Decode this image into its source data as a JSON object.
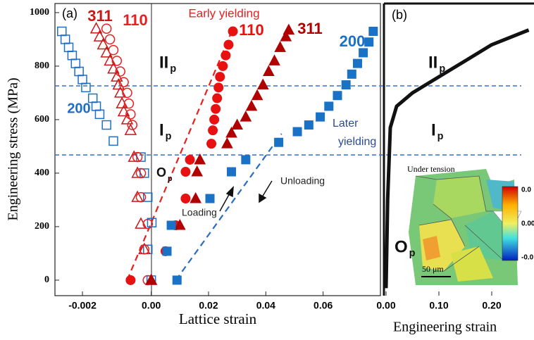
{
  "chart_data": [
    {
      "type": "scatter",
      "panel_label": "(a)",
      "xlabel": "Lattice strain",
      "ylabel": "Engineering stress (MPa)",
      "xlim": [
        -0.0028,
        0.08
      ],
      "x_negative_scale": 12,
      "xticks": [
        {
          "value": -0.002,
          "label": "-0.002"
        },
        {
          "value": 0,
          "label": "0.00"
        },
        {
          "value": 0.02,
          "label": "0.02"
        },
        {
          "value": 0.04,
          "label": "0.04"
        },
        {
          "value": 0.06,
          "label": "0.06"
        }
      ],
      "ylim": [
        -58,
        1034
      ],
      "yticks": [
        0,
        200,
        400,
        600,
        800,
        1000
      ],
      "series": [
        {
          "name": "200",
          "color": "#1f6fc8",
          "marker": "square",
          "filled": false,
          "x": [
            -0.0026,
            -0.0025,
            -0.0024,
            -0.0023,
            -0.0022,
            -0.0021,
            -0.002,
            -0.0019,
            -0.0017,
            -0.0016,
            -0.0015,
            -0.0013,
            -0.0011,
            -0.0003,
            -0.0002,
            -0.0001,
            0.0002,
            -0.0001,
            0
          ],
          "values": [
            930,
            900,
            870,
            840,
            810,
            780,
            750,
            720,
            680,
            650,
            620,
            580,
            520,
            460,
            400,
            310,
            215,
            115,
            0
          ]
        },
        {
          "name": "311",
          "color": "#c81818",
          "marker": "triangle",
          "filled": false,
          "x": [
            -0.0016,
            -0.0015,
            -0.0014,
            -0.0013,
            -0.0012,
            -0.0011,
            -0.001,
            -0.00095,
            -0.0009,
            -0.00085,
            -0.0008,
            -0.0007,
            -0.0006,
            -0.0005,
            -0.0004,
            -0.0004,
            -0.0003,
            -0.0002,
            0
          ],
          "values": [
            940,
            910,
            880,
            850,
            820,
            790,
            760,
            730,
            700,
            660,
            630,
            600,
            560,
            460,
            400,
            310,
            210,
            115,
            0
          ]
        },
        {
          "name": "110",
          "color": "#e82020",
          "marker": "circle",
          "filled": false,
          "x": [
            -0.0013,
            -0.0012,
            -0.0011,
            -0.001,
            -0.0009,
            -0.0008,
            -0.0007,
            -0.00065,
            -0.0006,
            -0.00055,
            -0.0004,
            -0.0003,
            -0.0003,
            -0.0001,
            -0.0002,
            -0.0001
          ],
          "values": [
            940,
            900,
            860,
            820,
            780,
            740,
            700,
            660,
            620,
            580,
            460,
            400,
            310,
            210,
            115,
            0
          ]
        },
        {
          "name": "110",
          "color": "#e81010",
          "marker": "circle",
          "filled": true,
          "x": [
            -0.0006,
            0.005,
            0.0085,
            0.012,
            0.012,
            0.0135,
            0.021,
            0.0215,
            0.022,
            0.0225,
            0.023,
            0.0235,
            0.024,
            0.025,
            0.026,
            0.027,
            0.0285
          ],
          "values": [
            0,
            108,
            205,
            305,
            405,
            450,
            510,
            560,
            600,
            640,
            680,
            720,
            760,
            800,
            840,
            880,
            930
          ]
        },
        {
          "name": "311",
          "color": "#b00000",
          "marker": "triangle",
          "filled": true,
          "x": [
            0,
            0.01,
            0.0155,
            0.016,
            0.017,
            0.0265,
            0.028,
            0.03,
            0.033,
            0.035,
            0.037,
            0.039,
            0.041,
            0.043,
            0.045,
            0.047,
            0.048
          ],
          "values": [
            0,
            205,
            305,
            405,
            450,
            510,
            550,
            580,
            610,
            650,
            690,
            730,
            780,
            820,
            870,
            910,
            935
          ]
        },
        {
          "name": "200",
          "color": "#1a72c6",
          "marker": "square",
          "filled": true,
          "x": [
            0.009,
            0.0055,
            0.007,
            0.0205,
            0.028,
            0.033,
            0.0445,
            0.051,
            0.055,
            0.059,
            0.062,
            0.065,
            0.068,
            0.07,
            0.072,
            0.074,
            0.076,
            0.0775
          ],
          "values": [
            0,
            108,
            205,
            305,
            405,
            450,
            515,
            555,
            580,
            610,
            650,
            690,
            730,
            770,
            810,
            850,
            890,
            930
          ]
        }
      ],
      "guides": [
        {
          "color": "#e82020",
          "x": [
            -0.0007,
            0.0285
          ],
          "values": [
            0,
            940
          ]
        },
        {
          "color": "#2a6cc0",
          "x": [
            0.0086,
            0.0455
          ],
          "values": [
            0,
            547
          ]
        }
      ],
      "stage_boundaries": [
        726,
        468
      ],
      "stages": [
        {
          "text": "II",
          "sub": "p"
        },
        {
          "text": "I",
          "sub": "p"
        },
        {
          "text": "O",
          "sub": "p"
        }
      ],
      "annotations": [
        "Early yielding",
        "Later",
        "yielding",
        "Loading",
        "Unloading"
      ]
    },
    {
      "type": "line",
      "panel_label": "(b)",
      "xlabel": "Engineering strain",
      "xlim": [
        -0.004,
        0.28
      ],
      "ylim": [
        -58,
        1034
      ],
      "xticks": [
        {
          "value": 0,
          "label": "0.00"
        },
        {
          "value": 0.1,
          "label": "0.10"
        },
        {
          "value": 0.2,
          "label": "0.20"
        }
      ],
      "color": "#111111",
      "x": [
        0,
        0.003,
        0.008,
        0.02,
        0.05,
        0.1,
        0.15,
        0.2,
        0.27
      ],
      "values": [
        -30,
        300,
        570,
        650,
        700,
        760,
        820,
        880,
        935
      ],
      "stages": [
        {
          "text": "II",
          "sub": "p"
        },
        {
          "text": "I",
          "sub": "p"
        },
        {
          "text": "O",
          "sub": "p"
        }
      ],
      "inset": {
        "title": "Under tension",
        "scale_bar": "50 μm",
        "colorbar_labels": [
          "0.0",
          "0.00",
          "-0.0"
        ]
      }
    }
  ]
}
